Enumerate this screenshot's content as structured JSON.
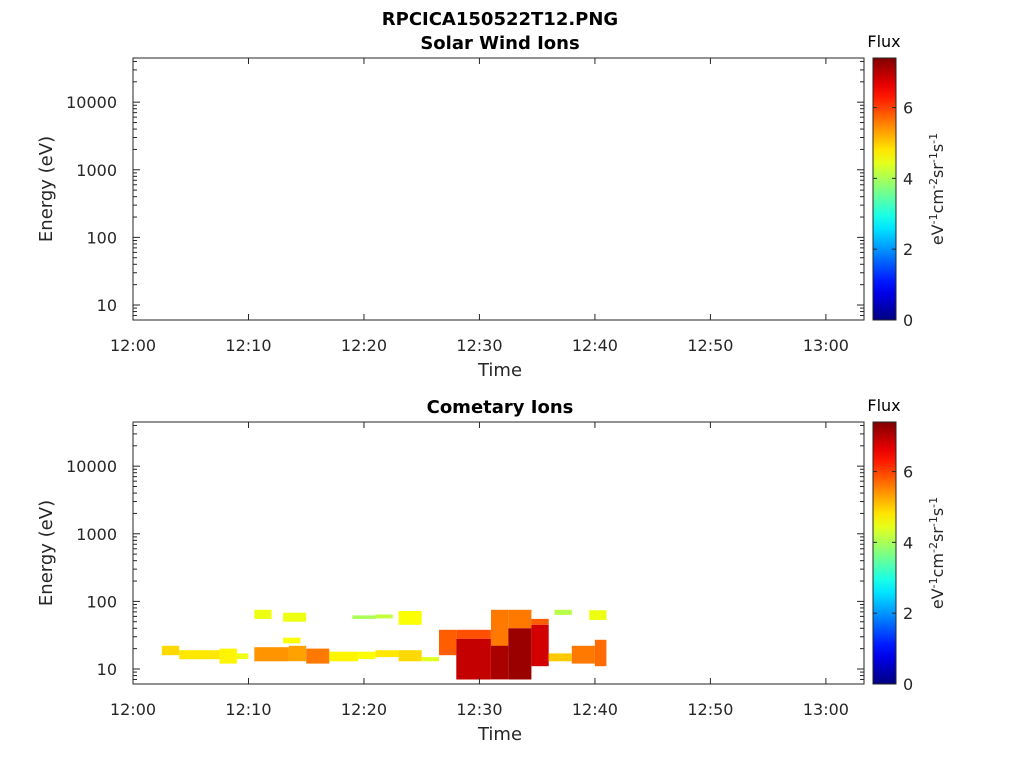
{
  "figure": {
    "title": "RPCICA150522T12.PNG"
  },
  "colorbar": {
    "label": "Flux",
    "ticks": [
      "0",
      "2",
      "4",
      "6"
    ],
    "range": [
      0,
      7.4
    ],
    "units": {
      "base1": "eV",
      "exp1": "-1",
      "base2": "cm",
      "exp2": "-2",
      "base3": "sr",
      "exp3": "-1",
      "base4": "s",
      "exp4": "-1"
    },
    "colormap": "jet"
  },
  "chart_data": [
    {
      "type": "heatmap",
      "title": "Solar Wind Ions",
      "xlabel": "Time",
      "ylabel": "Energy (eV)",
      "x_ticks": [
        "12:00",
        "12:10",
        "12:20",
        "12:30",
        "12:40",
        "12:50",
        "13:00"
      ],
      "y_ticks": [
        "10",
        "100",
        "1000",
        "10000"
      ],
      "y_scale": "log",
      "xlim_minutes": [
        0,
        63.3
      ],
      "ylim": [
        6,
        45000
      ],
      "cells": []
    },
    {
      "type": "heatmap",
      "title": "Cometary Ions",
      "xlabel": "Time",
      "ylabel": "Energy (eV)",
      "x_ticks": [
        "12:00",
        "12:10",
        "12:20",
        "12:30",
        "12:40",
        "12:50",
        "13:00"
      ],
      "y_ticks": [
        "10",
        "100",
        "1000",
        "10000"
      ],
      "y_scale": "log",
      "xlim_minutes": [
        0,
        63.3
      ],
      "ylim": [
        6,
        45000
      ],
      "cells": [
        {
          "t": [
            2.5,
            4.0
          ],
          "e": [
            16,
            22
          ],
          "v": 4.9
        },
        {
          "t": [
            4.0,
            7.5
          ],
          "e": [
            14,
            19
          ],
          "v": 4.8
        },
        {
          "t": [
            7.5,
            9.0
          ],
          "e": [
            12,
            20
          ],
          "v": 4.7
        },
        {
          "t": [
            9.0,
            10.0
          ],
          "e": [
            14,
            17
          ],
          "v": 4.5
        },
        {
          "t": [
            10.5,
            12.0
          ],
          "e": [
            55,
            75
          ],
          "v": 4.5
        },
        {
          "t": [
            13.0,
            15.0
          ],
          "e": [
            50,
            68
          ],
          "v": 4.5
        },
        {
          "t": [
            10.5,
            13.5
          ],
          "e": [
            13,
            21
          ],
          "v": 5.4
        },
        {
          "t": [
            13.5,
            15.0
          ],
          "e": [
            13,
            22
          ],
          "v": 5.3
        },
        {
          "t": [
            13.0,
            14.5
          ],
          "e": [
            24,
            29
          ],
          "v": 4.6
        },
        {
          "t": [
            15.0,
            17.0
          ],
          "e": [
            12,
            20
          ],
          "v": 5.6
        },
        {
          "t": [
            17.0,
            19.5
          ],
          "e": [
            13,
            18
          ],
          "v": 4.7
        },
        {
          "t": [
            19.0,
            21.0
          ],
          "e": [
            55,
            62
          ],
          "v": 4.0
        },
        {
          "t": [
            19.5,
            21.0
          ],
          "e": [
            14,
            18
          ],
          "v": 4.6
        },
        {
          "t": [
            21.0,
            22.5
          ],
          "e": [
            56,
            64
          ],
          "v": 4.2
        },
        {
          "t": [
            21.0,
            23.0
          ],
          "e": [
            15,
            19
          ],
          "v": 4.8
        },
        {
          "t": [
            23.0,
            25.0
          ],
          "e": [
            45,
            72
          ],
          "v": 4.6
        },
        {
          "t": [
            23.0,
            25.0
          ],
          "e": [
            13,
            19
          ],
          "v": 4.9
        },
        {
          "t": [
            25.0,
            26.5
          ],
          "e": [
            13,
            15
          ],
          "v": 4.4
        },
        {
          "t": [
            26.5,
            28.0
          ],
          "e": [
            16,
            38
          ],
          "v": 5.8
        },
        {
          "t": [
            28.0,
            31.0
          ],
          "e": [
            28,
            38
          ],
          "v": 5.9
        },
        {
          "t": [
            28.0,
            31.0
          ],
          "e": [
            7,
            28
          ],
          "v": 6.9
        },
        {
          "t": [
            31.0,
            32.5
          ],
          "e": [
            18,
            75
          ],
          "v": 5.6
        },
        {
          "t": [
            31.0,
            32.5
          ],
          "e": [
            7,
            22
          ],
          "v": 7.1
        },
        {
          "t": [
            32.5,
            34.5
          ],
          "e": [
            40,
            75
          ],
          "v": 5.6
        },
        {
          "t": [
            32.5,
            34.5
          ],
          "e": [
            7,
            40
          ],
          "v": 7.2
        },
        {
          "t": [
            34.5,
            36.0
          ],
          "e": [
            45,
            55
          ],
          "v": 5.8
        },
        {
          "t": [
            34.5,
            36.0
          ],
          "e": [
            11,
            45
          ],
          "v": 6.8
        },
        {
          "t": [
            36.5,
            38.0
          ],
          "e": [
            63,
            75
          ],
          "v": 4.1
        },
        {
          "t": [
            36.0,
            38.0
          ],
          "e": [
            13,
            17
          ],
          "v": 5.0
        },
        {
          "t": [
            38.0,
            40.0
          ],
          "e": [
            12,
            22
          ],
          "v": 5.6
        },
        {
          "t": [
            40.0,
            41.0
          ],
          "e": [
            11,
            27
          ],
          "v": 5.7
        },
        {
          "t": [
            39.5,
            41.0
          ],
          "e": [
            53,
            74
          ],
          "v": 4.5
        }
      ]
    }
  ]
}
